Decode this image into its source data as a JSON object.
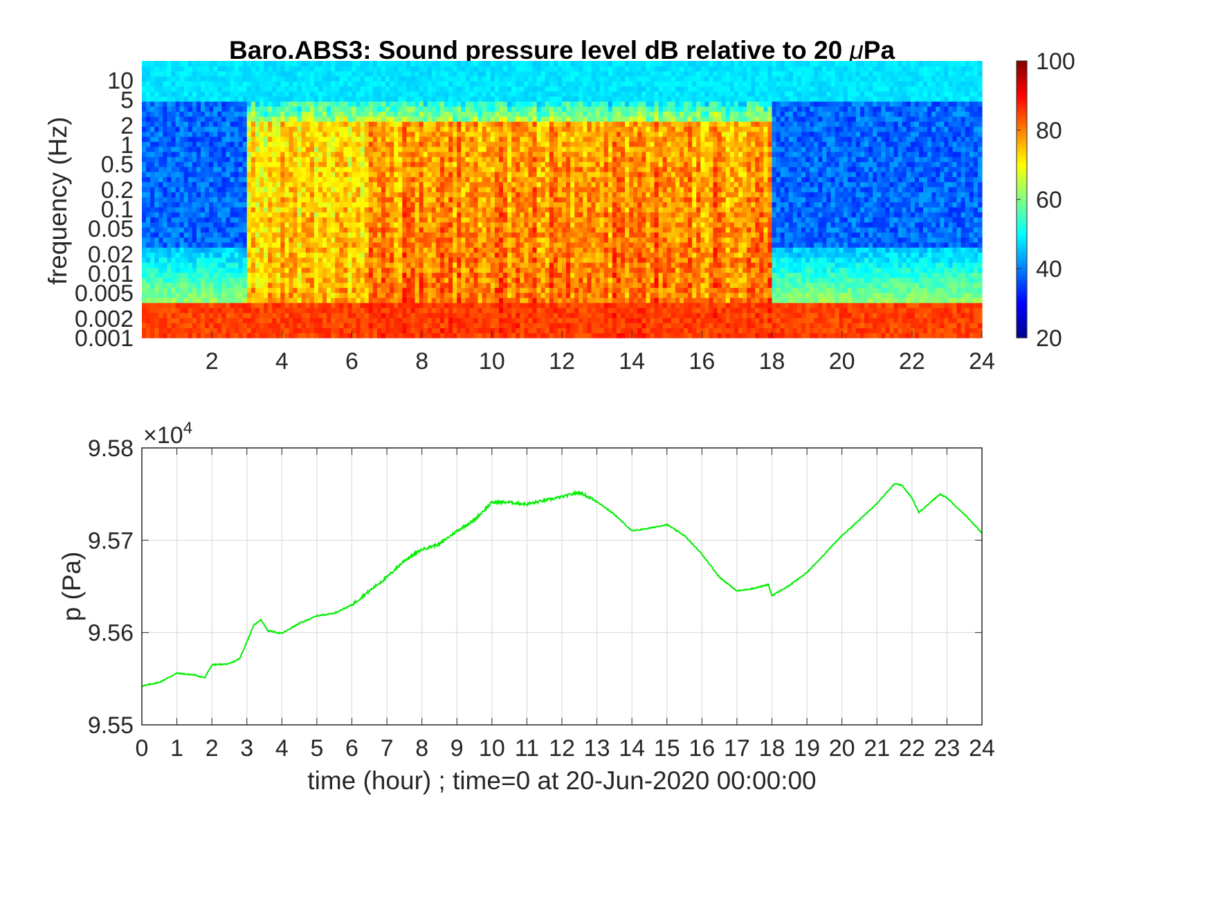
{
  "chart_data": [
    {
      "type": "heatmap",
      "title": "Baro.ABS3: Sound pressure level dB relative to 20 μPa",
      "title_plain": "Baro.ABS3: Sound pressure level dB relative to 20 ",
      "title_mu": "μ",
      "title_unit": "Pa",
      "ylabel": "frequency (Hz)",
      "xlabel": "",
      "xlim": [
        0,
        24
      ],
      "ylim": [
        0.001,
        20
      ],
      "yscale": "log",
      "x_ticks": [
        2,
        4,
        6,
        8,
        10,
        12,
        14,
        16,
        18,
        20,
        22,
        24
      ],
      "y_ticks": [
        0.001,
        0.002,
        0.005,
        0.01,
        0.02,
        0.05,
        0.1,
        0.2,
        0.5,
        1,
        2,
        5,
        10
      ],
      "y_tick_labels": [
        "0.001",
        "0.002",
        "0.005",
        "0.01",
        "0.02",
        "0.05",
        "0.1",
        "0.2",
        "0.5",
        "1",
        "2",
        "5",
        "10"
      ],
      "colormap": "jet",
      "colorbar": {
        "min": 20,
        "max": 100,
        "ticks": [
          20,
          40,
          60,
          80,
          100
        ],
        "placement": "right"
      },
      "activity_hours": [
        {
          "start": 0,
          "end": 3,
          "level": "low"
        },
        {
          "start": 3,
          "end": 6.5,
          "level": "medium"
        },
        {
          "start": 6.5,
          "end": 18,
          "level": "high"
        },
        {
          "start": 18,
          "end": 24,
          "level": "low"
        }
      ],
      "noise_band_floor_db": 85,
      "high_freq_db": 48
    },
    {
      "type": "line",
      "title": "",
      "xlabel": "time (hour) ; time=0 at 20-Jun-2020 00:00:00",
      "ylabel": "p (Pa)",
      "xlim": [
        0,
        24
      ],
      "ylim": [
        95500,
        95800
      ],
      "y_exponent_label": "×10",
      "y_exponent_power": "4",
      "x_ticks": [
        0,
        1,
        2,
        3,
        4,
        5,
        6,
        7,
        8,
        9,
        10,
        11,
        12,
        13,
        14,
        15,
        16,
        17,
        18,
        19,
        20,
        21,
        22,
        23,
        24
      ],
      "y_ticks": [
        95500,
        95600,
        95700,
        95800
      ],
      "y_tick_labels": [
        "9.55",
        "9.56",
        "9.57",
        "9.58"
      ],
      "grid": true,
      "color": "#00ee00",
      "series": [
        {
          "x": [
            0,
            0.5,
            1,
            1.5,
            1.8,
            2,
            2.5,
            2.8,
            3,
            3.2,
            3.4,
            3.6,
            4,
            4.5,
            5,
            5.5,
            6,
            6.5,
            7,
            7.5,
            8,
            8.5,
            9,
            9.5,
            10,
            10.5,
            11,
            11.5,
            12,
            12.5,
            13,
            13.5,
            14,
            14.5,
            15,
            15.5,
            16,
            16.5,
            17,
            17.5,
            17.9,
            18,
            18.5,
            19,
            19.5,
            20,
            20.5,
            21,
            21.5,
            21.7,
            22,
            22.2,
            22.5,
            22.8,
            23,
            23.5,
            24
          ],
          "y": [
            95542,
            95546,
            95556,
            95554,
            95551,
            95565,
            95566,
            95572,
            95590,
            95608,
            95614,
            95602,
            95599,
            95610,
            95618,
            95621,
            95630,
            95645,
            95660,
            95678,
            95690,
            95696,
            95710,
            95722,
            95741,
            95741,
            95739,
            95743,
            95747,
            95752,
            95742,
            95728,
            95710,
            95713,
            95717,
            95705,
            95685,
            95660,
            95645,
            95648,
            95652,
            95640,
            95651,
            95665,
            95685,
            95705,
            95722,
            95740,
            95761,
            95760,
            95746,
            95730,
            95740,
            95750,
            95746,
            95728,
            95708
          ]
        }
      ]
    }
  ]
}
